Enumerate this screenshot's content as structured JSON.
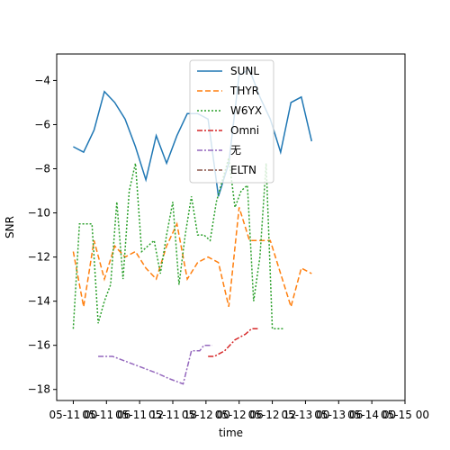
{
  "chart_data": {
    "type": "line",
    "xlabel": "time",
    "ylabel": "SNR",
    "xlim": [
      0,
      42
    ],
    "ylim": [
      -18.5,
      -2.8
    ],
    "x_tick_labels": [
      {
        "x": 2,
        "label": "05-11 00"
      },
      {
        "x": 6,
        "label": "05-11 06"
      },
      {
        "x": 10,
        "label": "05-11 12"
      },
      {
        "x": 14,
        "label": "05-11 18"
      },
      {
        "x": 18,
        "label": "05-12 00"
      },
      {
        "x": 22,
        "label": "05-12 06"
      },
      {
        "x": 26,
        "label": "05-12 12"
      },
      {
        "x": 30,
        "label": "05-13 00"
      },
      {
        "x": 34,
        "label": "05-13 06"
      },
      {
        "x": 38,
        "label": "05-14 00"
      },
      {
        "x": 42,
        "label": "05-15 00"
      }
    ],
    "y_ticks": [
      -18,
      -16,
      -14,
      -12,
      -10,
      -8,
      -6,
      -4
    ],
    "y_tick_labels": [
      "−18",
      "−16",
      "−14",
      "−12",
      "−10",
      "−8",
      "−6",
      "−4"
    ],
    "legend_position": "top-center",
    "series": [
      {
        "name": "SUNL",
        "color": "#1f77b4",
        "dash": "solid",
        "x": [
          2,
          3.25,
          4.5,
          5.75,
          7,
          8.25,
          9.5,
          10.75,
          12,
          13.25,
          14.5,
          15.75,
          17,
          18.25,
          19.5,
          20.75,
          22,
          23.25,
          24.5,
          25.75,
          27,
          28.25,
          29.5,
          30.75,
          32,
          33.25,
          34.5,
          35.75,
          37,
          38.25,
          39.5
        ],
        "y": [
          -7.0,
          -7.25,
          -6.25,
          -4.5,
          -5.0,
          -5.75,
          -7.0,
          -8.5,
          -6.5,
          -7.75,
          -6.5,
          -5.5,
          -5.5,
          -5.75,
          -9.25,
          -7.75,
          -3.75,
          -3.5,
          -4.75,
          -5.75,
          -7.25,
          -5.0,
          -4.75,
          -6.75,
          null,
          null,
          null,
          null,
          null,
          null,
          null
        ]
      },
      {
        "name": "THYR",
        "color": "#ff7f0e",
        "dash": "dashed",
        "x": [
          2,
          3.25,
          4.5,
          5.75,
          7,
          8.25,
          9.5,
          10.75,
          12,
          13.25,
          14.5,
          15.75,
          17,
          18.25,
          19.5,
          20.75,
          22,
          23.25,
          24.5,
          25.75,
          27,
          28.25,
          29.5,
          30.75
        ],
        "y": [
          -11.75,
          -14.25,
          -11.25,
          -13.0,
          -11.5,
          -12.0,
          -11.75,
          -12.5,
          -13.0,
          -11.5,
          -10.5,
          -13.0,
          -12.25,
          -12.0,
          -12.25,
          -14.25,
          -9.75,
          -11.25,
          -11.25,
          -11.25,
          -12.75,
          -14.25,
          -12.5,
          -12.75
        ]
      },
      {
        "name": "W6YX",
        "color": "#2ca02c",
        "dash": "dotted",
        "x": [
          2,
          2.75,
          3.5,
          4.25,
          5,
          5.75,
          6.5,
          7.25,
          8,
          8.75,
          9.5,
          10.25,
          11,
          11.75,
          12.5,
          13.25,
          14,
          14.75,
          15.5,
          16.25,
          17,
          17.75,
          18.5,
          19.25,
          20,
          20.75,
          21.5,
          22.25,
          23,
          23.75,
          24.5,
          25.25,
          26,
          26.75,
          27.5,
          28.25,
          29,
          29.75,
          30.5
        ],
        "y": [
          -15.25,
          -10.5,
          -10.5,
          -10.5,
          -15.0,
          -14.0,
          -13.25,
          -9.5,
          -13.0,
          -9.0,
          -7.75,
          -11.75,
          -11.5,
          -11.25,
          -12.75,
          -11.0,
          -9.5,
          -13.25,
          -11.0,
          -9.25,
          -11.0,
          -11.0,
          -11.25,
          -9.5,
          -8.5,
          -7.5,
          -9.75,
          -9.0,
          -8.75,
          -14.0,
          -12.0,
          -7.75,
          -15.25,
          -15.25,
          -15.25,
          null,
          null,
          null,
          null
        ]
      },
      {
        "name": "Omni",
        "color": "#d62728",
        "dash": "dashdot",
        "x": [
          18.25,
          19.0,
          20.25,
          21.5,
          22.75,
          23.5,
          24.25
        ],
        "y": [
          -16.5,
          -16.5,
          -16.25,
          -15.75,
          -15.5,
          -15.25,
          -15.25
        ]
      },
      {
        "name": "无",
        "color": "#9467bd",
        "dash": "dashdot",
        "x": [
          5,
          5.75,
          6.75,
          8.5,
          10.25,
          12.0,
          13.5,
          15.25,
          16.25,
          17.25,
          17.75,
          18.75
        ],
        "y": [
          -16.5,
          -16.5,
          -16.5,
          -16.75,
          -17.0,
          -17.25,
          -17.5,
          -17.75,
          -16.25,
          -16.25,
          -16.0,
          -16.0
        ]
      },
      {
        "name": "ELTN",
        "color": "#8c564b",
        "dash": "dashdot",
        "x": [],
        "y": []
      }
    ]
  }
}
